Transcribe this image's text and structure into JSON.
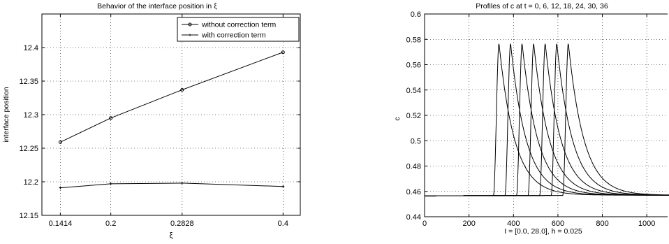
{
  "chart_data": [
    {
      "type": "line",
      "title": "Behavior of the interface position in ξ",
      "xlabel": "ξ",
      "ylabel": "interface position",
      "xlim": [
        0.12,
        0.42
      ],
      "ylim": [
        12.15,
        12.45
      ],
      "xticks": [
        0.1414,
        0.2,
        0.2828,
        0.4
      ],
      "xtick_labels": [
        "0.1414",
        "0.2",
        "0.2828",
        "0.4"
      ],
      "yticks": [
        12.15,
        12.2,
        12.25,
        12.3,
        12.35,
        12.4
      ],
      "ytick_labels": [
        "12.15",
        "12.2",
        "12.25",
        "12.3",
        "12.35",
        "12.4"
      ],
      "grid": true,
      "legend": "top-right",
      "series": [
        {
          "name": "without correction term",
          "marker": "o",
          "x": [
            0.1414,
            0.2,
            0.2828,
            0.4
          ],
          "values": [
            12.259,
            12.295,
            12.337,
            12.393
          ]
        },
        {
          "name": "with correction term",
          "marker": "+",
          "x": [
            0.1414,
            0.2,
            0.2828,
            0.4
          ],
          "values": [
            12.191,
            12.197,
            12.198,
            12.193
          ]
        }
      ]
    },
    {
      "type": "line",
      "title": "Profiles of c at t = 0, 6, 12, 18, 24, 30, 36",
      "xlabel": "I = [0.0, 28.0], h = 0.025",
      "ylabel": "c",
      "xlim": [
        0,
        1120
      ],
      "ylim": [
        0.44,
        0.6
      ],
      "xticks": [
        0,
        200,
        400,
        600,
        800,
        1000
      ],
      "xtick_labels": [
        "0",
        "200",
        "400",
        "600",
        "800",
        "1000"
      ],
      "yticks": [
        0.44,
        0.46,
        0.48,
        0.5,
        0.52,
        0.54,
        0.56,
        0.58,
        0.6
      ],
      "ytick_labels": [
        "0.44",
        "0.46",
        "0.48",
        "0.5",
        "0.52",
        "0.54",
        "0.56",
        "0.58",
        "0.6"
      ],
      "grid": true,
      "profile": {
        "baseline_left": 0.4565,
        "baseline_right": 0.457,
        "peak": 0.577,
        "rise_width": 25,
        "decay_length": 70
      },
      "peak_positions": [
        335,
        387,
        439,
        491,
        543,
        595,
        647
      ]
    }
  ]
}
